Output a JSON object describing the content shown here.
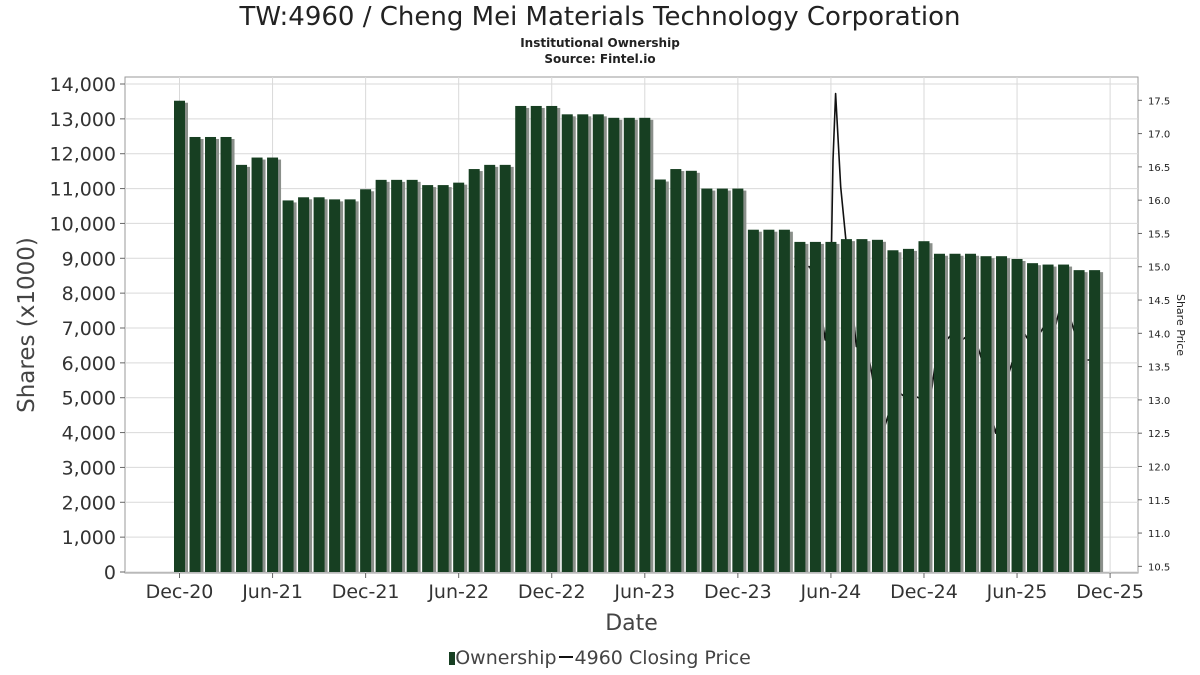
{
  "title": "TW:4960 / Cheng Mei Materials Technology Corporation",
  "subtitle": "Institutional Ownership",
  "source": "Source: Fintel.io",
  "colors": {
    "bar": "#173f22",
    "bar_shadow": "#8a8f8a",
    "line": "#111111",
    "grid": "#d9d9d9"
  },
  "chart_data": {
    "type": "bar",
    "title": "TW:4960 / Cheng Mei Materials Technology Corporation",
    "xlabel": "Date",
    "ylabel": "Shares (x1000)",
    "y2label": "Share Price",
    "ylim": [
      0,
      14000
    ],
    "y2lim": [
      10.4,
      17.85
    ],
    "grid": true,
    "legend_position": "bottom-center",
    "x_ticks": [
      "Dec-20",
      "Jun-21",
      "Dec-21",
      "Jun-22",
      "Dec-22",
      "Jun-23",
      "Dec-23",
      "Jun-24",
      "Dec-24",
      "Jun-25",
      "Dec-25"
    ],
    "y_ticks": [
      0,
      1000,
      2000,
      3000,
      4000,
      5000,
      6000,
      7000,
      8000,
      9000,
      10000,
      11000,
      12000,
      13000,
      14000
    ],
    "y_tick_labels": [
      "0",
      "1,000",
      "2,000",
      "3,000",
      "4,000",
      "5,000",
      "6,000",
      "7,000",
      "8,000",
      "9,000",
      "10,000",
      "11,000",
      "12,000",
      "13,000",
      "14,000"
    ],
    "y2_ticks": [
      10.5,
      11.0,
      11.5,
      12.0,
      12.5,
      13.0,
      13.5,
      14.0,
      14.5,
      15.0,
      15.5,
      16.0,
      16.5,
      17.0,
      17.5
    ],
    "y2_tick_labels": [
      "10.5",
      "11.0",
      "11.5",
      "12.0",
      "12.5",
      "13.0",
      "13.5",
      "14.0",
      "14.5",
      "15.0",
      "15.5",
      "16.0",
      "16.5",
      "17.0",
      "17.5"
    ],
    "series": [
      {
        "name": "Ownership",
        "type": "bar",
        "axis": "left",
        "x": [
          "2020-12",
          "2021-01",
          "2021-02",
          "2021-03",
          "2021-04",
          "2021-05",
          "2021-06",
          "2021-07",
          "2021-08",
          "2021-09",
          "2021-10",
          "2021-11",
          "2021-12",
          "2022-01",
          "2022-02",
          "2022-03",
          "2022-04",
          "2022-05",
          "2022-06",
          "2022-07",
          "2022-08",
          "2022-09",
          "2022-10",
          "2022-11",
          "2022-12",
          "2023-01",
          "2023-02",
          "2023-03",
          "2023-04",
          "2023-05",
          "2023-06",
          "2023-07",
          "2023-08",
          "2023-09",
          "2023-10",
          "2023-11",
          "2023-12",
          "2024-01",
          "2024-02",
          "2024-03",
          "2024-04",
          "2024-05",
          "2024-06",
          "2024-07",
          "2024-08",
          "2024-09",
          "2024-10",
          "2024-11",
          "2024-12",
          "2025-01",
          "2025-02",
          "2025-03",
          "2025-04",
          "2025-05",
          "2025-06",
          "2025-07",
          "2025-08",
          "2025-09",
          "2025-10",
          "2025-11"
        ],
        "values": [
          13520,
          12480,
          12480,
          12480,
          11680,
          11890,
          11890,
          10660,
          10750,
          10750,
          10690,
          10690,
          10980,
          11250,
          11250,
          11250,
          11100,
          11100,
          11170,
          11560,
          11680,
          11680,
          13370,
          13370,
          13370,
          13130,
          13130,
          13130,
          13030,
          13030,
          13030,
          11260,
          11560,
          11510,
          11000,
          11000,
          11000,
          9820,
          9820,
          9820,
          9470,
          9470,
          9470,
          9550,
          9550,
          9530,
          9230,
          9270,
          9490,
          9130,
          9130,
          9130,
          9060,
          9060,
          8980,
          8860,
          8820,
          8820,
          8660,
          8660
        ]
      },
      {
        "name": "4960 Closing Price",
        "type": "line",
        "axis": "right",
        "x": [
          "2024-03-20",
          "2024-04-20",
          "2024-05-05",
          "2024-05-20",
          "2024-06-01",
          "2024-06-05",
          "2024-06-10",
          "2024-06-20",
          "2024-07-05",
          "2024-07-20",
          "2024-08-05",
          "2024-08-20",
          "2024-09-01",
          "2024-09-15",
          "2024-10-01",
          "2024-10-15",
          "2024-11-01",
          "2024-11-15",
          "2024-12-01",
          "2024-12-15",
          "2025-01-01",
          "2025-01-15",
          "2025-02-01",
          "2025-02-15",
          "2025-03-01",
          "2025-03-15",
          "2025-04-01",
          "2025-04-10",
          "2025-04-20",
          "2025-05-01",
          "2025-05-15",
          "2025-06-01",
          "2025-06-15",
          "2025-07-01",
          "2025-07-15",
          "2025-08-01",
          "2025-08-15",
          "2025-09-01",
          "2025-09-15",
          "2025-10-01",
          "2025-10-15",
          "2025-11-01"
        ],
        "values": [
          15.0,
          15.0,
          14.7,
          13.9,
          14.8,
          16.6,
          17.6,
          16.2,
          15.0,
          13.8,
          14.0,
          13.4,
          12.8,
          12.6,
          13.0,
          13.1,
          13.0,
          13.05,
          13.0,
          13.1,
          14.0,
          13.9,
          14.05,
          13.9,
          14.0,
          13.8,
          13.4,
          12.8,
          12.5,
          13.0,
          13.4,
          13.8,
          14.0,
          13.8,
          14.0,
          14.2,
          14.1,
          14.6,
          14.2,
          13.8,
          13.6,
          13.6
        ]
      }
    ]
  },
  "legend": {
    "ownership_label": "Ownership",
    "price_label": "4960 Closing Price"
  }
}
